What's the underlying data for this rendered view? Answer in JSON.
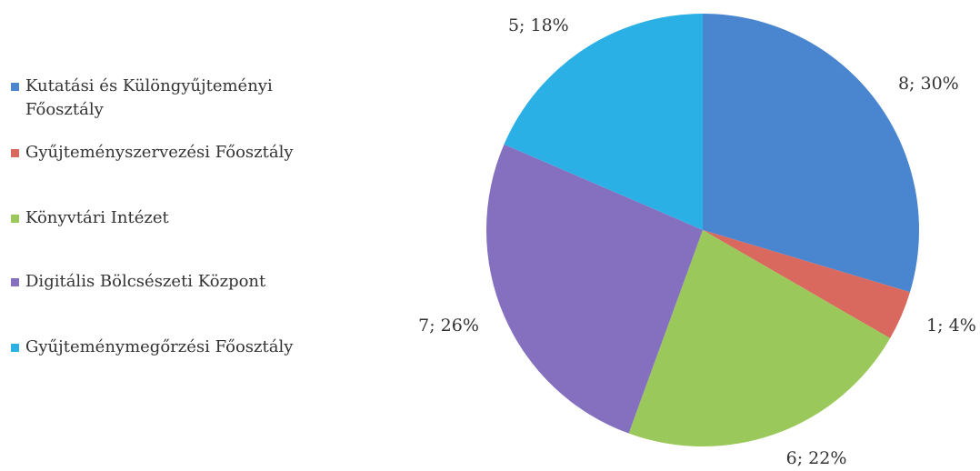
{
  "chart_data": {
    "type": "pie",
    "categories": [
      "Kutatási és Különgyűjteményi Főosztály",
      "Gyűjteményszervezési Főosztály",
      "Könyvtári Intézet",
      "Digitális Bölcsészeti Központ",
      "Gyűjteménymegőrzési Főosztály"
    ],
    "values": [
      8,
      1,
      6,
      7,
      5
    ],
    "value_labels": [
      "8; 30%",
      "1; 4%",
      "6; 22%",
      "7; 26%",
      "5; 18%"
    ],
    "colors": [
      "#4a86d0",
      "#d9695f",
      "#9bc85a",
      "#8570c0",
      "#2bb0e6"
    ],
    "legend": "left"
  }
}
